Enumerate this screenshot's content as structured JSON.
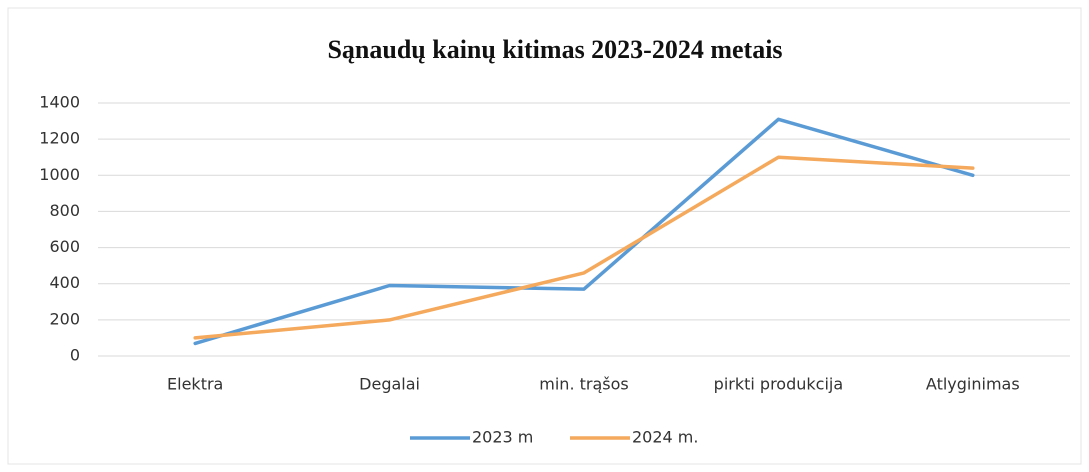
{
  "chart_data": {
    "type": "line",
    "title": "Sąnaudų kainų kitimas 2023-2024 metais",
    "categories": [
      "Elektra",
      "Degalai",
      "min. trąšos",
      "pirkti produkcija",
      "Atlyginimas"
    ],
    "series": [
      {
        "name": "2023 m",
        "color": "#5b9bd5",
        "values": [
          70,
          390,
          370,
          1310,
          1000
        ]
      },
      {
        "name": "2024 m.",
        "color": "#f4a95c",
        "values": [
          100,
          200,
          460,
          1100,
          1040
        ]
      }
    ],
    "ylim": [
      0,
      1400
    ],
    "yticks": [
      0,
      200,
      400,
      600,
      800,
      1000,
      1200,
      1400
    ],
    "grid": true,
    "legend": "bottom"
  }
}
